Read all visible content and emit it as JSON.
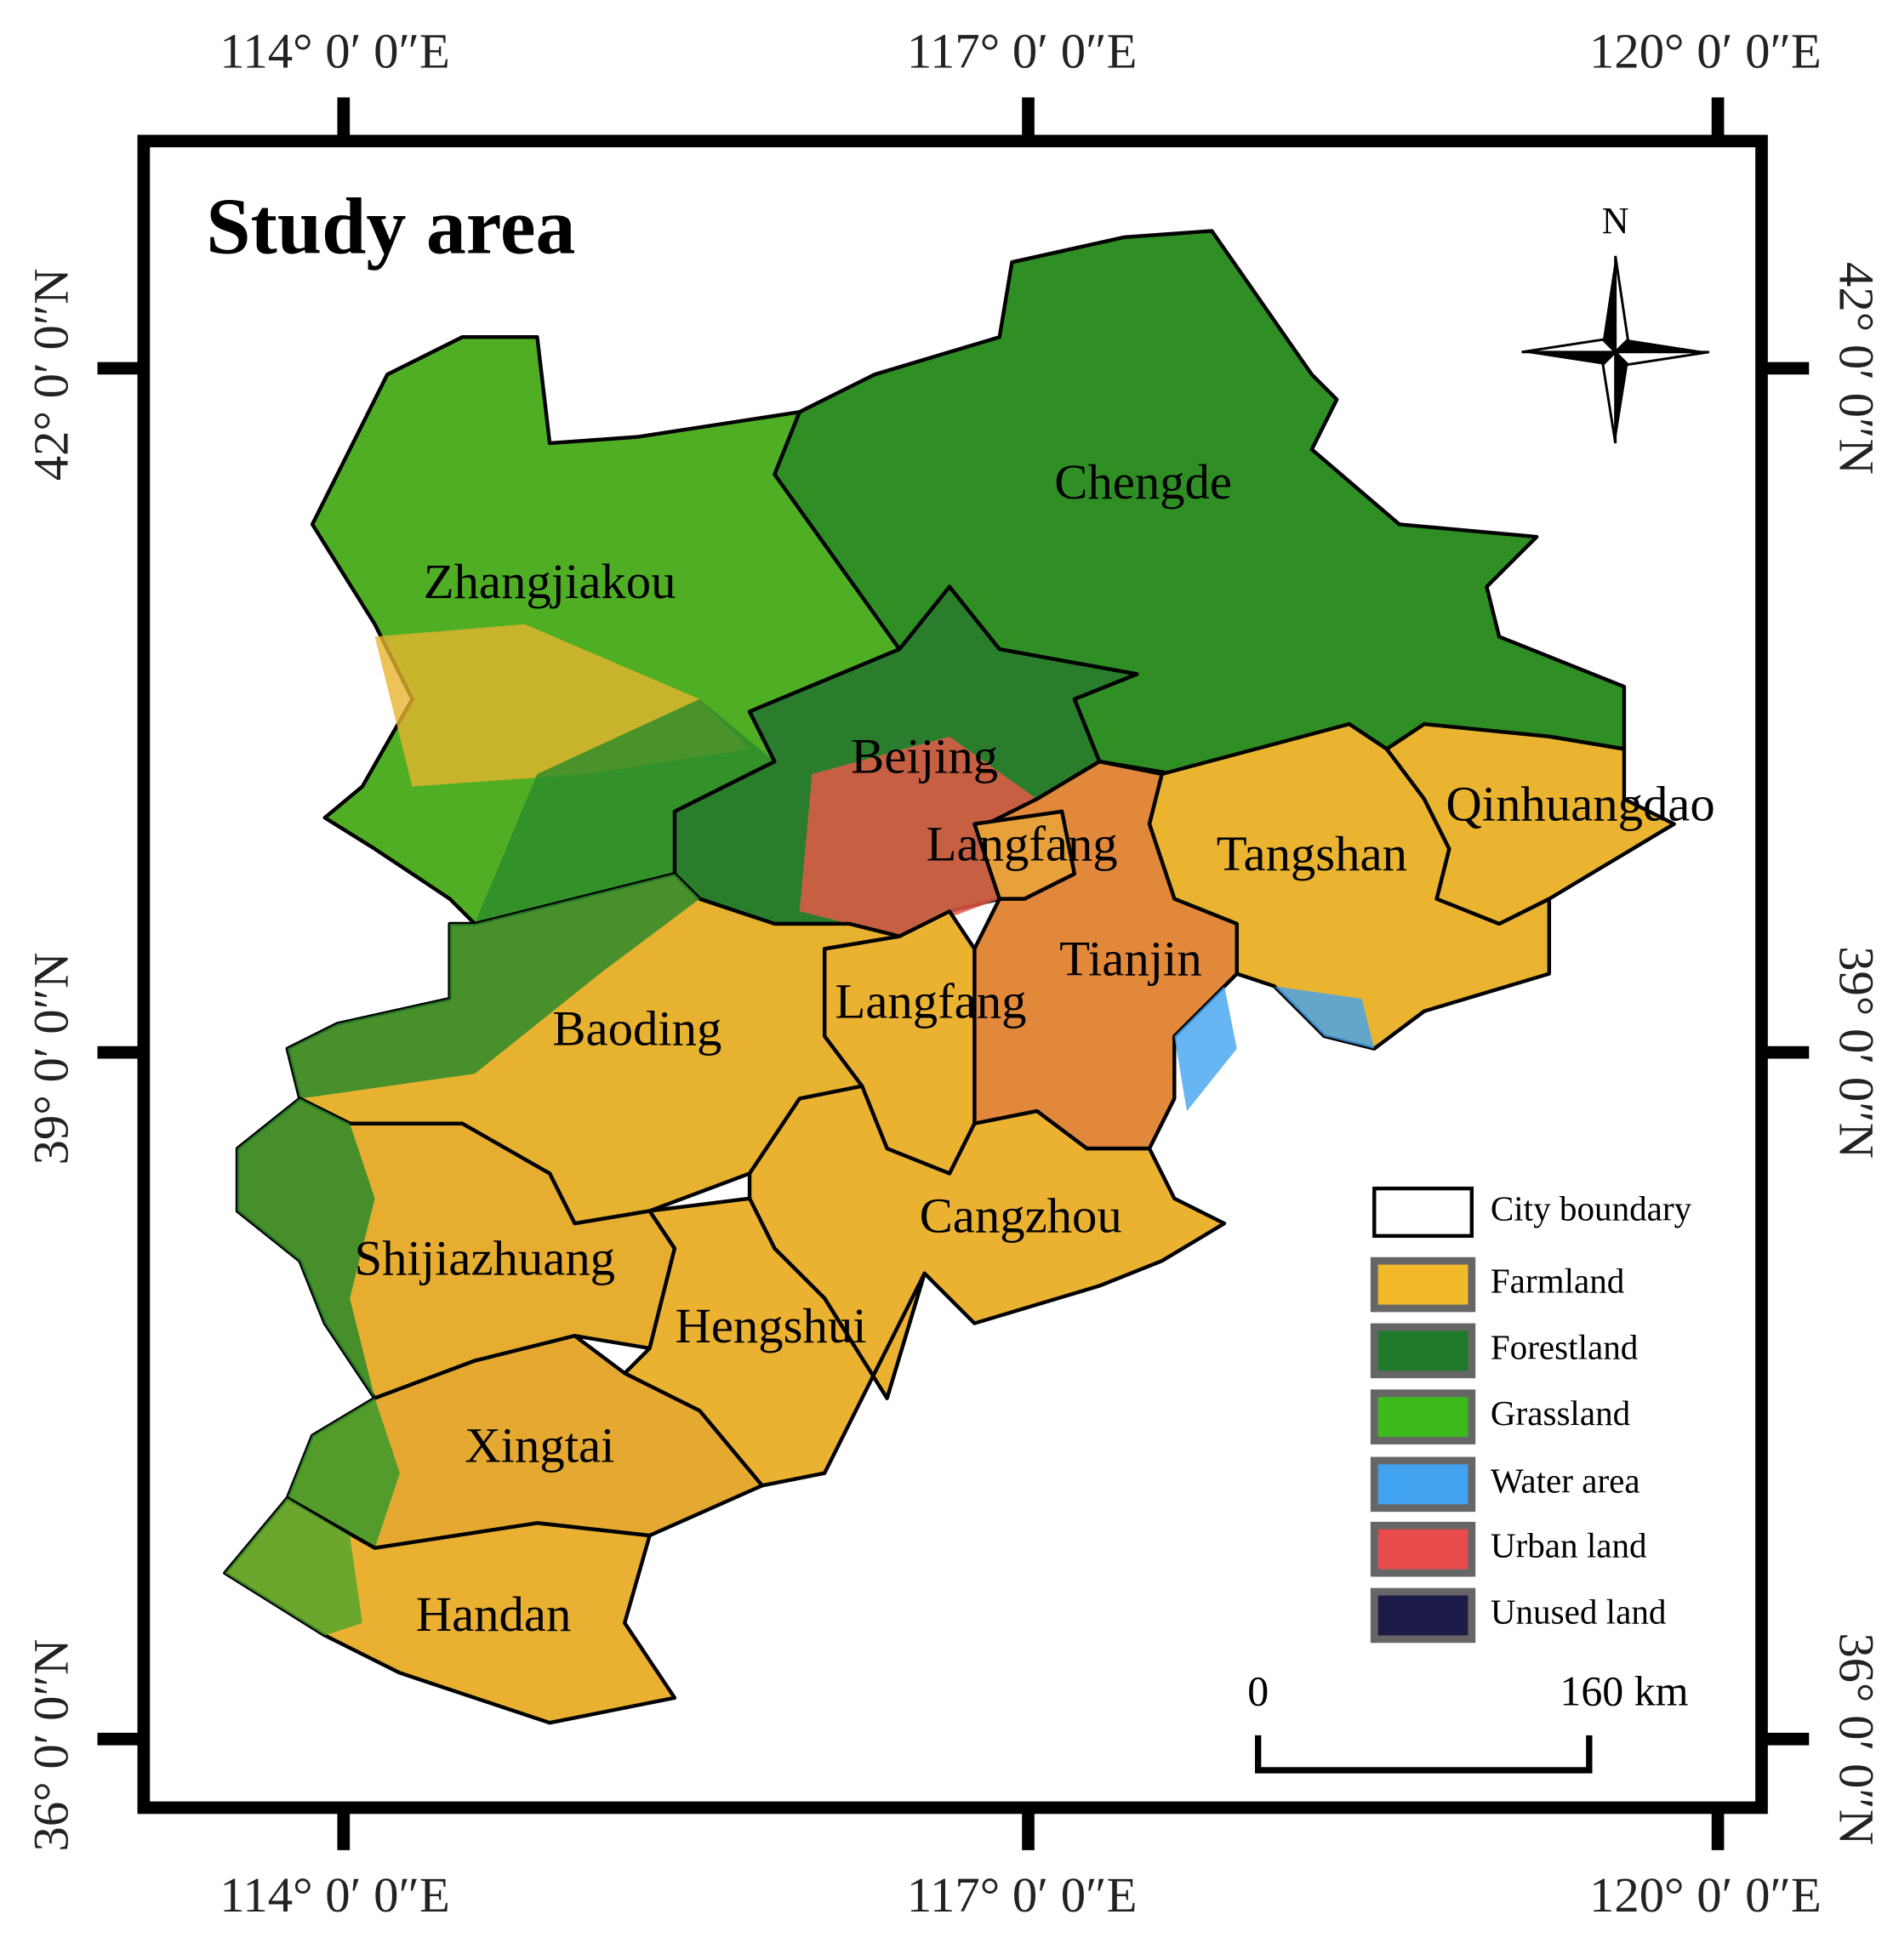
{
  "title": "Study area",
  "north_label": "N",
  "longitude_labels": [
    "114°  0′ 0″E",
    "117°  0′ 0″E",
    "120°  0′ 0″E"
  ],
  "latitude_labels": [
    "42°  0′ 0″N",
    "39°  0′ 0″N",
    "36°  0′ 0″N"
  ],
  "cities": [
    "Zhangjiakou",
    "Chengde",
    "Beijing",
    "Langfang",
    "Tangshan",
    "Qinhuangdao",
    "Tianjin",
    "Langfang",
    "Baoding",
    "Cangzhou",
    "Shijiazhuang",
    "Hengshui",
    "Xingtai",
    "Handan"
  ],
  "legend": [
    {
      "label": "City boundary",
      "color": "#ffffff"
    },
    {
      "label": "Farmland",
      "color": "#f2b92b"
    },
    {
      "label": "Forestland",
      "color": "#1f7a2c"
    },
    {
      "label": "Grassland",
      "color": "#3dba1c"
    },
    {
      "label": "Water area",
      "color": "#41a2f0"
    },
    {
      "label": "Urban land",
      "color": "#e84b4b"
    },
    {
      "label": "Unused land",
      "color": "#1d1b48"
    }
  ],
  "scale_bar": {
    "start_label": "0",
    "end_label": "160 km"
  }
}
